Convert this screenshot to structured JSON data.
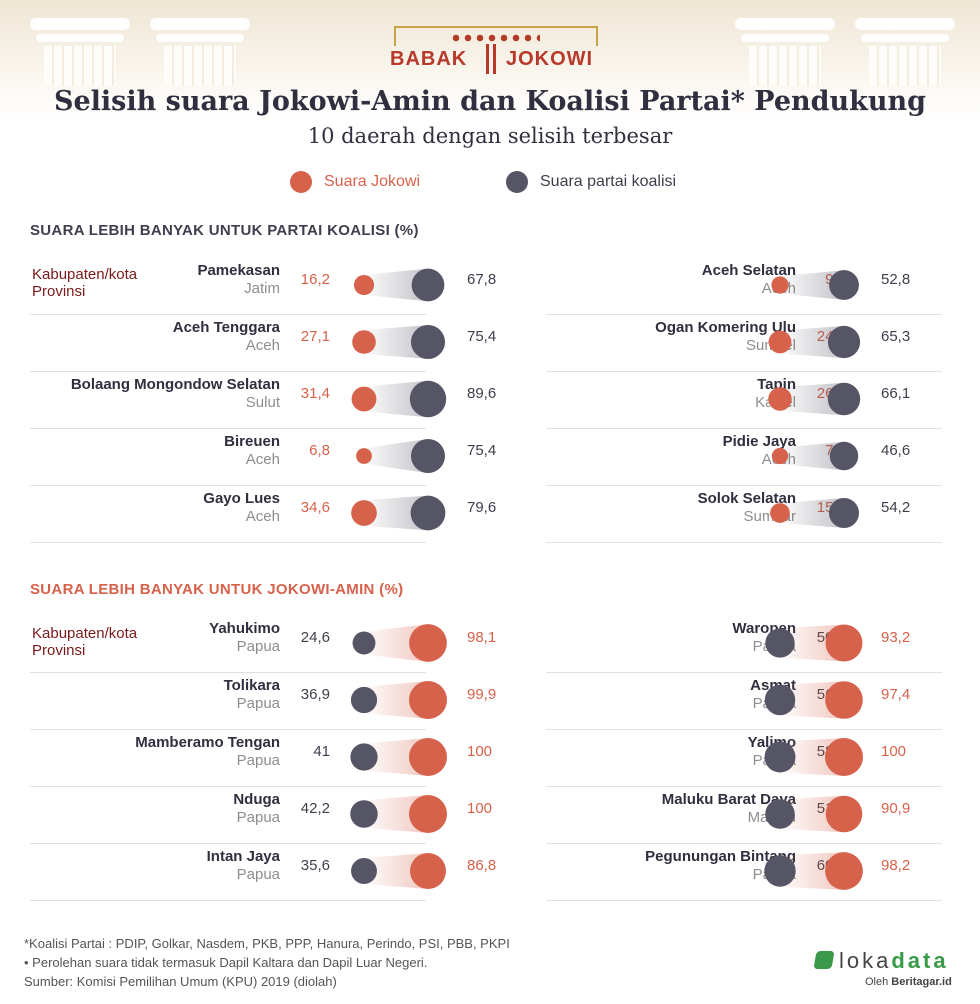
{
  "header": {
    "logo_left": "BABAK",
    "logo_right": "JOKOWI",
    "title": "Selisih suara Jokowi-Amin dan Koalisi Partai* Pendukung",
    "subtitle": "10 daerah dengan selisih terbesar"
  },
  "legend": {
    "jokowi": "Suara Jokowi",
    "koalisi": "Suara partai koalisi"
  },
  "colors": {
    "jokowi": "#d6624b",
    "koalisi": "#565565",
    "header_koalisi": "#3e3e4e",
    "header_jokowi": "#d6624b"
  },
  "column_header": {
    "line1": "Kabupaten/kota",
    "line2": "Provinsi"
  },
  "chart_data": [
    {
      "type": "table",
      "title": "SUARA LEBIH BANYAK UNTUK PARTAI KOALISI (%)",
      "columns": [
        "Kabupaten/kota",
        "Provinsi",
        "Suara Jokowi",
        "Suara partai koalisi"
      ],
      "rows": [
        {
          "name": "Pamekasan",
          "province": "Jatim",
          "jokowi": "16,2",
          "koalisi": "67,8"
        },
        {
          "name": "Aceh Tenggara",
          "province": "Aceh",
          "jokowi": "27,1",
          "koalisi": "75,4"
        },
        {
          "name": "Bolaang Mongondow Selatan",
          "province": "Sulut",
          "jokowi": "31,4",
          "koalisi": "89,6"
        },
        {
          "name": "Bireuen",
          "province": "Aceh",
          "jokowi": "6,8",
          "koalisi": "75,4"
        },
        {
          "name": "Gayo Lues",
          "province": "Aceh",
          "jokowi": "34,6",
          "koalisi": "79,6"
        },
        {
          "name": "Aceh Selatan",
          "province": "Aceh",
          "jokowi": "9,4",
          "koalisi": "52,8"
        },
        {
          "name": "Ogan Komering Ulu",
          "province": "Sumsel",
          "jokowi": "24,3",
          "koalisi": "65,3"
        },
        {
          "name": "Tapin",
          "province": "Kalsel",
          "jokowi": "26,5",
          "koalisi": "66,1"
        },
        {
          "name": "Pidie Jaya",
          "province": "Aceh",
          "jokowi": "7,6",
          "koalisi": "46,6"
        },
        {
          "name": "Solok Selatan",
          "province": "Sumbar",
          "jokowi": "15,2",
          "koalisi": "54,2"
        }
      ]
    },
    {
      "type": "table",
      "title": "SUARA LEBIH BANYAK UNTUK JOKOWI-AMIN (%)",
      "columns": [
        "Kabupaten/kota",
        "Provinsi",
        "Suara partai koalisi",
        "Suara Jokowi"
      ],
      "rows": [
        {
          "name": "Yahukimo",
          "province": "Papua",
          "koalisi": "24,6",
          "jokowi": "98,1"
        },
        {
          "name": "Tolikara",
          "province": "Papua",
          "koalisi": "36,9",
          "jokowi": "99,9"
        },
        {
          "name": "Mamberamo Tengan",
          "province": "Papua",
          "koalisi": "41",
          "jokowi": "100"
        },
        {
          "name": "Nduga",
          "province": "Papua",
          "koalisi": "42,2",
          "jokowi": "100"
        },
        {
          "name": "Intan Jaya",
          "province": "Papua",
          "koalisi": "35,6",
          "jokowi": "86,8"
        },
        {
          "name": "Waropen",
          "province": "Papua",
          "koalisi": "50,6",
          "jokowi": "93,2"
        },
        {
          "name": "Asmat",
          "province": "Papua",
          "koalisi": "56,1",
          "jokowi": "97,4"
        },
        {
          "name": "Yalimo",
          "province": "Papua",
          "koalisi": "58,6",
          "jokowi": "100"
        },
        {
          "name": "Maluku Barat Daya",
          "province": "Maluku",
          "koalisi": "51,5",
          "jokowi": "90,9"
        },
        {
          "name": "Pegunungan Bintang",
          "province": "Papua",
          "koalisi": "60,9",
          "jokowi": "98,2"
        }
      ]
    }
  ],
  "footnotes": [
    "*Koalisi Partai : PDIP, Golkar, Nasdem, PKB, PPP, Hanura, Perindo, PSI, PBB, PKPI",
    "• Perolehan suara tidak termasuk Dapil Kaltara dan Dapil Luar Negeri.",
    "Sumber: Komisi Pemilihan Umum (KPU) 2019 (diolah)"
  ],
  "brand": {
    "name_a": "loka",
    "name_b": "data",
    "by_prefix": "Oleh ",
    "by_name": "Beritagar.id"
  }
}
